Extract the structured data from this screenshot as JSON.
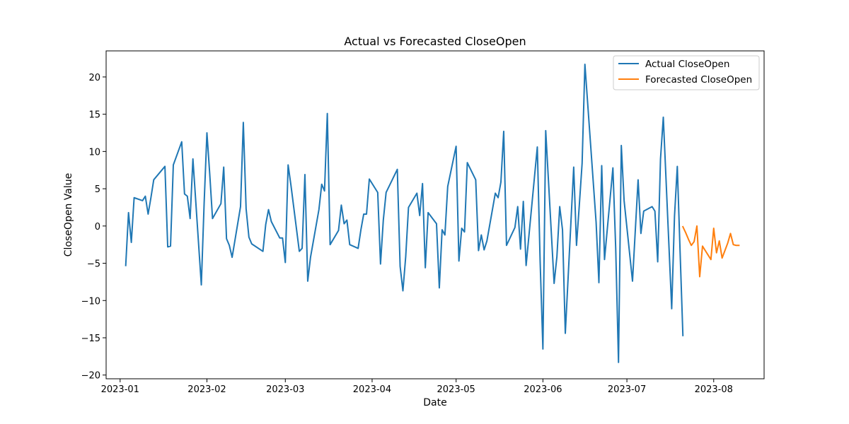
{
  "chart_data": {
    "type": "line",
    "title": "Actual vs Forecasted CloseOpen",
    "xlabel": "Date",
    "ylabel": "CloseOpen Value",
    "xlim": [
      "2022-12-27",
      "2023-08-19"
    ],
    "ylim": [
      -20.5,
      23.5
    ],
    "x_ticks": [
      "2023-01-01",
      "2023-02-01",
      "2023-03-01",
      "2023-04-01",
      "2023-05-01",
      "2023-06-01",
      "2023-07-01",
      "2023-08-01"
    ],
    "x_tick_labels": [
      "2023-01",
      "2023-02",
      "2023-03",
      "2023-04",
      "2023-05",
      "2023-06",
      "2023-07",
      "2023-08"
    ],
    "y_ticks": [
      -20,
      -15,
      -10,
      -5,
      0,
      5,
      10,
      15,
      20
    ],
    "y_tick_labels": [
      "−20",
      "−15",
      "−10",
      "−5",
      "0",
      "5",
      "10",
      "15",
      "20"
    ],
    "grid": false,
    "legend_position": "top-right",
    "series": [
      {
        "name": "Actual CloseOpen",
        "color": "#1f77b4",
        "x": [
          "2023-01-03",
          "2023-01-04",
          "2023-01-05",
          "2023-01-06",
          "2023-01-09",
          "2023-01-10",
          "2023-01-11",
          "2023-01-12",
          "2023-01-13",
          "2023-01-17",
          "2023-01-18",
          "2023-01-19",
          "2023-01-20",
          "2023-01-23",
          "2023-01-24",
          "2023-01-25",
          "2023-01-26",
          "2023-01-27",
          "2023-01-30",
          "2023-01-31",
          "2023-02-01",
          "2023-02-02",
          "2023-02-03",
          "2023-02-06",
          "2023-02-07",
          "2023-02-08",
          "2023-02-09",
          "2023-02-10",
          "2023-02-13",
          "2023-02-14",
          "2023-02-15",
          "2023-02-16",
          "2023-02-17",
          "2023-02-21",
          "2023-02-22",
          "2023-02-23",
          "2023-02-24",
          "2023-02-27",
          "2023-02-28",
          "2023-03-01",
          "2023-03-02",
          "2023-03-03",
          "2023-03-06",
          "2023-03-07",
          "2023-03-08",
          "2023-03-09",
          "2023-03-10",
          "2023-03-13",
          "2023-03-14",
          "2023-03-15",
          "2023-03-16",
          "2023-03-17",
          "2023-03-20",
          "2023-03-21",
          "2023-03-22",
          "2023-03-23",
          "2023-03-24",
          "2023-03-27",
          "2023-03-28",
          "2023-03-29",
          "2023-03-30",
          "2023-03-31",
          "2023-04-03",
          "2023-04-04",
          "2023-04-05",
          "2023-04-06",
          "2023-04-10",
          "2023-04-11",
          "2023-04-12",
          "2023-04-13",
          "2023-04-14",
          "2023-04-17",
          "2023-04-18",
          "2023-04-19",
          "2023-04-20",
          "2023-04-21",
          "2023-04-24",
          "2023-04-25",
          "2023-04-26",
          "2023-04-27",
          "2023-04-28",
          "2023-05-01",
          "2023-05-02",
          "2023-05-03",
          "2023-05-04",
          "2023-05-05",
          "2023-05-08",
          "2023-05-09",
          "2023-05-10",
          "2023-05-11",
          "2023-05-12",
          "2023-05-15",
          "2023-05-16",
          "2023-05-17",
          "2023-05-18",
          "2023-05-19",
          "2023-05-22",
          "2023-05-23",
          "2023-05-24",
          "2023-05-25",
          "2023-05-26",
          "2023-05-30",
          "2023-05-31",
          "2023-06-01",
          "2023-06-02",
          "2023-06-05",
          "2023-06-06",
          "2023-06-07",
          "2023-06-08",
          "2023-06-09",
          "2023-06-12",
          "2023-06-13",
          "2023-06-14",
          "2023-06-15",
          "2023-06-16",
          "2023-06-20",
          "2023-06-21",
          "2023-06-22",
          "2023-06-23",
          "2023-06-26",
          "2023-06-27",
          "2023-06-28",
          "2023-06-29",
          "2023-06-30",
          "2023-07-03",
          "2023-07-05",
          "2023-07-06",
          "2023-07-07",
          "2023-07-10",
          "2023-07-11",
          "2023-07-12",
          "2023-07-13",
          "2023-07-14",
          "2023-07-17",
          "2023-07-18",
          "2023-07-19",
          "2023-07-20",
          "2023-07-21"
        ],
        "y": [
          -5.3,
          1.8,
          -2.2,
          3.8,
          3.4,
          4.0,
          1.6,
          3.8,
          6.2,
          8.0,
          -2.8,
          -2.7,
          8.2,
          11.3,
          4.3,
          4.0,
          1.0,
          9.0,
          -7.9,
          3.0,
          12.5,
          7.0,
          1.0,
          3.0,
          7.9,
          -1.7,
          -2.6,
          -4.2,
          2.6,
          13.9,
          2.3,
          -1.5,
          -2.4,
          -3.4,
          0.2,
          2.2,
          0.6,
          -1.6,
          -1.6,
          -4.9,
          8.2,
          5.5,
          -3.4,
          -3.0,
          6.9,
          -7.4,
          -4.2,
          2.2,
          5.6,
          4.7,
          15.1,
          -2.5,
          -0.6,
          2.8,
          0.3,
          0.8,
          -2.5,
          -3.0,
          -0.5,
          1.6,
          1.6,
          6.3,
          4.5,
          -5.1,
          0.8,
          4.5,
          7.6,
          -5.4,
          -8.7,
          -4.1,
          2.5,
          4.4,
          1.4,
          5.7,
          -5.6,
          1.8,
          0.3,
          -8.3,
          -0.5,
          -1.2,
          5.3,
          10.7,
          -4.7,
          -0.3,
          -0.8,
          8.5,
          6.2,
          -3.3,
          -1.2,
          -3.2,
          -2.0,
          4.4,
          3.8,
          5.9,
          12.7,
          -2.6,
          -0.2,
          2.6,
          -3.1,
          3.3,
          -5.3,
          10.6,
          -4.6,
          -16.5,
          12.8,
          -7.7,
          -4.1,
          2.6,
          -0.5,
          -14.4,
          7.9,
          -2.6,
          2.8,
          8.4,
          21.7,
          0.5,
          -7.6,
          8.1,
          -4.5,
          7.8,
          -3.0,
          -18.3,
          10.8,
          3.4,
          -7.4,
          6.2,
          -1.0,
          2.0,
          2.6,
          2.0,
          -4.8,
          9.0,
          14.6,
          -11.1,
          1.3,
          8.0,
          -3.5,
          -14.7
        ]
      },
      {
        "name": "Forecasted CloseOpen",
        "color": "#ff7f0e",
        "x": [
          "2023-07-21",
          "2023-07-22",
          "2023-07-23",
          "2023-07-24",
          "2023-07-25",
          "2023-07-26",
          "2023-07-27",
          "2023-07-28",
          "2023-07-29",
          "2023-07-30",
          "2023-07-31",
          "2023-08-01",
          "2023-08-02",
          "2023-08-03",
          "2023-08-04",
          "2023-08-05",
          "2023-08-06",
          "2023-08-07",
          "2023-08-08",
          "2023-08-09",
          "2023-08-10"
        ],
        "y": [
          -0.1,
          -0.9,
          -1.8,
          -2.6,
          -2.1,
          0.0,
          -6.8,
          -2.7,
          -3.3,
          -3.9,
          -4.5,
          -0.3,
          -3.6,
          -2.0,
          -4.3,
          -3.3,
          -2.3,
          -1.0,
          -2.5,
          -2.6,
          -2.6
        ]
      }
    ]
  }
}
